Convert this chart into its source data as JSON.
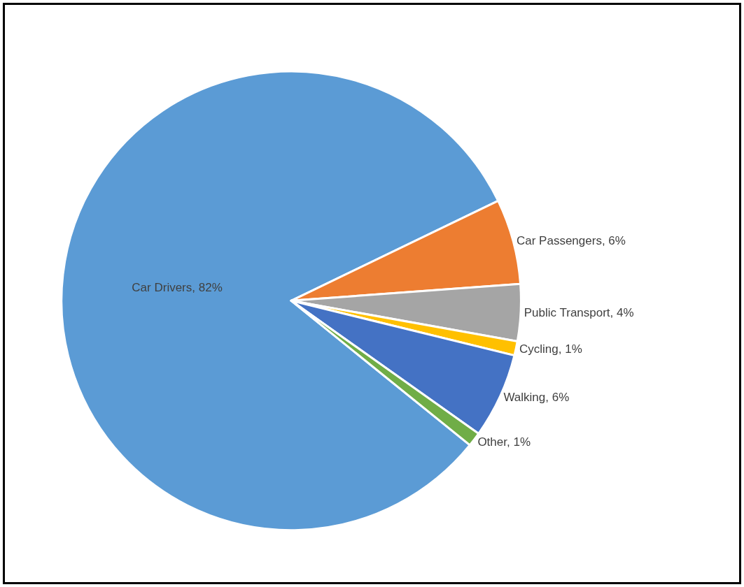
{
  "chart_data": {
    "type": "pie",
    "categories": [
      "Car Drivers",
      "Car Passengers",
      "Public Transport",
      "Cycling",
      "Walking",
      "Other"
    ],
    "values": [
      82,
      6,
      4,
      1,
      6,
      1
    ],
    "value_labels": [
      "82%",
      "6%",
      "4%",
      "1%",
      "6%",
      "1%"
    ],
    "colors": [
      "#5b9bd5",
      "#ed7d31",
      "#a5a5a5",
      "#ffc000",
      "#4472c4",
      "#70ad47"
    ],
    "legend": false
  }
}
